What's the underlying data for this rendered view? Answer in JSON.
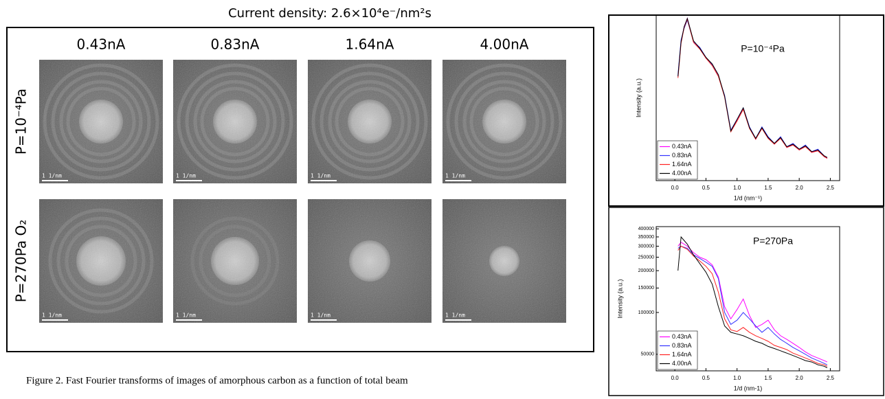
{
  "figure": {
    "title": "Current density: 2.6×10⁴e⁻/nm²s",
    "columns": [
      "0.43nA",
      "0.83nA",
      "1.64nA",
      "4.00nA"
    ],
    "rows": [
      "P=10⁻⁴Pa",
      "P=270Pa O₂"
    ],
    "scale_bar": "1 1/nm",
    "caption": "Figure 2. Fast Fourier transforms of images of amorphous carbon as a function of total beam"
  },
  "chart_data": [
    {
      "type": "line",
      "annotation": "P=10⁻⁴Pa",
      "x_label": "1/d (nm⁻¹)",
      "y_label": "Intensity (a.u.)",
      "x": [
        0.05,
        0.1,
        0.15,
        0.2,
        0.3,
        0.4,
        0.5,
        0.6,
        0.7,
        0.8,
        0.9,
        1.0,
        1.1,
        1.2,
        1.3,
        1.4,
        1.5,
        1.6,
        1.7,
        1.8,
        1.9,
        2.0,
        2.1,
        2.2,
        2.3,
        2.4,
        2.45
      ],
      "xlim": [
        -0.3,
        2.65
      ],
      "ylim": [
        0,
        10
      ],
      "legend": "lower left",
      "xticks": [
        {
          "value": 0,
          "label": "0.0"
        },
        0.5,
        {
          "value": 1,
          "label": "1.0"
        },
        1.5,
        {
          "value": 2,
          "label": "2.0"
        },
        2.5
      ],
      "series": [
        {
          "name": "0.43nA",
          "color": "#ff00ff",
          "values": [
            6.3,
            8.4,
            9.3,
            9.8,
            8.4,
            8.0,
            7.4,
            7.0,
            6.35,
            5.1,
            3.0,
            3.65,
            4.35,
            3.2,
            2.5,
            3.2,
            2.6,
            2.2,
            2.6,
            2.0,
            2.2,
            1.85,
            2.1,
            1.7,
            1.85,
            1.45,
            1.35
          ]
        },
        {
          "name": "0.83nA",
          "color": "#3333ff",
          "values": [
            6.4,
            8.5,
            9.2,
            9.7,
            8.4,
            8.05,
            7.45,
            7.0,
            6.3,
            5.15,
            3.05,
            3.7,
            4.4,
            3.25,
            2.55,
            3.25,
            2.65,
            2.25,
            2.65,
            2.05,
            2.25,
            1.9,
            2.15,
            1.75,
            1.9,
            1.5,
            1.4
          ]
        },
        {
          "name": "1.64nA",
          "color": "#ff2020",
          "values": [
            6.2,
            8.3,
            9.25,
            9.75,
            8.35,
            7.95,
            7.4,
            6.95,
            6.3,
            5.05,
            2.95,
            3.6,
            4.3,
            3.15,
            2.5,
            3.15,
            2.55,
            2.2,
            2.55,
            2.0,
            2.15,
            1.85,
            2.05,
            1.7,
            1.8,
            1.45,
            1.35
          ]
        },
        {
          "name": "4.00nA",
          "color": "#000000",
          "values": [
            6.3,
            8.4,
            9.3,
            9.8,
            8.45,
            8.0,
            7.45,
            7.05,
            6.4,
            5.1,
            3.0,
            3.7,
            4.4,
            3.2,
            2.55,
            3.2,
            2.6,
            2.25,
            2.6,
            2.05,
            2.2,
            1.9,
            2.1,
            1.75,
            1.85,
            1.5,
            1.4
          ]
        }
      ]
    },
    {
      "type": "line",
      "annotation": "P=270Pa",
      "x_label": "1/d (nm-1)",
      "y_label": "Intensity (a.u.)",
      "x": [
        0.05,
        0.1,
        0.2,
        0.3,
        0.4,
        0.5,
        0.6,
        0.7,
        0.8,
        0.9,
        1.0,
        1.1,
        1.2,
        1.3,
        1.4,
        1.5,
        1.6,
        1.7,
        1.8,
        1.9,
        2.0,
        2.1,
        2.2,
        2.3,
        2.4,
        2.45
      ],
      "xlim": [
        -0.3,
        2.65
      ],
      "ylim": [
        38000,
        415000
      ],
      "log_y": true,
      "legend": "lower left",
      "xticks": [
        {
          "value": 0,
          "label": "0.0"
        },
        0.5,
        {
          "value": 1,
          "label": "1.0"
        },
        1.5,
        {
          "value": 2,
          "label": "2.0"
        },
        2.5
      ],
      "yticks": [
        50000,
        100000,
        150000,
        200000,
        250000,
        300000,
        350000,
        400000
      ],
      "series": [
        {
          "name": "0.43nA",
          "color": "#ff00ff",
          "values": [
            300000,
            320000,
            300000,
            270000,
            250000,
            240000,
            220000,
            180000,
            110000,
            90000,
            105000,
            125000,
            95000,
            78000,
            82000,
            88000,
            75000,
            68000,
            64000,
            60000,
            56000,
            52000,
            49000,
            47000,
            45000,
            44000
          ]
        },
        {
          "name": "0.83nA",
          "color": "#3333ff",
          "values": [
            290000,
            300000,
            290000,
            260000,
            245000,
            230000,
            215000,
            175000,
            100000,
            82000,
            88000,
            100000,
            90000,
            80000,
            72000,
            78000,
            70000,
            64000,
            60000,
            56000,
            53000,
            50000,
            47000,
            45000,
            43000,
            42000
          ]
        },
        {
          "name": "1.64nA",
          "color": "#ff2020",
          "values": [
            280000,
            300000,
            285000,
            255000,
            235000,
            215000,
            190000,
            140000,
            90000,
            75000,
            73000,
            78000,
            72000,
            68000,
            65000,
            62000,
            58000,
            56000,
            54000,
            51000,
            49000,
            47000,
            45000,
            43000,
            42000,
            41000
          ]
        },
        {
          "name": "4.00nA",
          "color": "#000000",
          "values": [
            200000,
            350000,
            310000,
            260000,
            225000,
            195000,
            160000,
            110000,
            80000,
            72000,
            70000,
            68000,
            65000,
            62000,
            60000,
            57000,
            55000,
            53000,
            51000,
            49000,
            47000,
            45000,
            44000,
            42000,
            41000,
            40000
          ]
        }
      ]
    }
  ]
}
